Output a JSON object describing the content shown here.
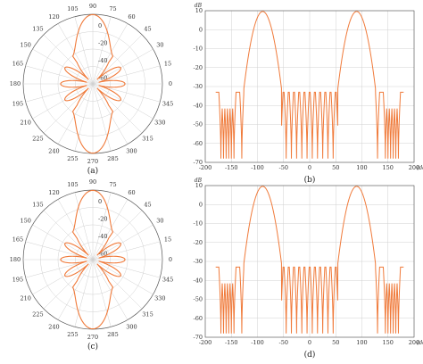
{
  "colors": {
    "trace": "#f07a3a",
    "grid": "#d0d0d0",
    "axis": "#555555",
    "text": "#333333"
  },
  "chart_data": [
    {
      "panel": "(a)",
      "type": "polar",
      "caption": "(a)",
      "angle_ticks": [
        "0",
        "15",
        "30",
        "45",
        "60",
        "75",
        "90",
        "105",
        "120",
        "135",
        "150",
        "165",
        "180",
        "195",
        "210",
        "225",
        "240",
        "255",
        "270",
        "285",
        "300",
        "315",
        "330",
        "345"
      ],
      "radial_ticks": [
        "0",
        "-20",
        "-40",
        "-60"
      ],
      "rlim": [
        -70,
        10
      ],
      "pattern": {
        "peak_db": 9.6,
        "null_dirs_deg": [
          -55,
          -60,
          -65,
          -70,
          -75,
          -80,
          -85,
          -95,
          -100,
          -105,
          -110,
          -115,
          -120,
          -125,
          -130,
          -145,
          -150,
          -155,
          -160,
          -165,
          -170
        ],
        "sidelobe_db": -33
      }
    },
    {
      "panel": "(b)",
      "type": "line",
      "caption": "(b)",
      "ylabel": "dB",
      "xlabel": "(deg)",
      "xlim": [
        -200,
        200
      ],
      "ylim": [
        -70,
        10
      ],
      "x_ticks": [
        "-200",
        "-150",
        "-100",
        "-50",
        "0",
        "50",
        "100",
        "150",
        "200"
      ],
      "y_ticks": [
        "10",
        "0",
        "-10",
        "-20",
        "-30",
        "-40",
        "-50",
        "-60",
        "-70"
      ],
      "series": [
        {
          "main_lobes": [
            {
              "center": -90,
              "peak": 9.6
            },
            {
              "center": 90,
              "peak": 9.6
            }
          ],
          "sidelobe_level": -33,
          "null_positions": [
            -170,
            -165,
            -160,
            -155,
            -150,
            -145,
            -130,
            -55,
            -45,
            -35,
            -25,
            -15,
            -5,
            5,
            15,
            25,
            35,
            45,
            55,
            130,
            145,
            150,
            155,
            160,
            165,
            170
          ],
          "null_depth": -68,
          "x_range": [
            -180,
            180
          ]
        }
      ]
    },
    {
      "panel": "(c)",
      "type": "polar",
      "caption": "(c)",
      "angle_ticks": [
        "0",
        "15",
        "30",
        "45",
        "60",
        "75",
        "90",
        "105",
        "120",
        "135",
        "150",
        "165",
        "180",
        "195",
        "210",
        "225",
        "240",
        "255",
        "270",
        "285",
        "300",
        "315",
        "330",
        "345"
      ],
      "radial_ticks": [
        "0",
        "-20",
        "-40",
        "-60"
      ],
      "rlim": [
        -70,
        10
      ],
      "pattern": {
        "peak_db": 9.6,
        "sidelobe_db": -33
      }
    },
    {
      "panel": "(d)",
      "type": "line",
      "caption": "(d)",
      "ylabel": "dB",
      "xlabel": "(deg)",
      "xlim": [
        -200,
        200
      ],
      "ylim": [
        -70,
        10
      ],
      "x_ticks": [
        "-200",
        "-150",
        "-100",
        "-50",
        "0",
        "50",
        "100",
        "150",
        "200"
      ],
      "y_ticks": [
        "10",
        "0",
        "-10",
        "-20",
        "-30",
        "-40",
        "-50",
        "-60",
        "-70"
      ],
      "series": [
        {
          "main_lobes": [
            {
              "center": -90,
              "peak": 9.6
            },
            {
              "center": 90,
              "peak": 9.6
            }
          ],
          "sidelobe_level": -33,
          "null_positions": [
            -170,
            -165,
            -160,
            -155,
            -150,
            -145,
            -130,
            -55,
            -45,
            -35,
            -25,
            -15,
            -5,
            5,
            15,
            25,
            35,
            45,
            55,
            130,
            145,
            150,
            155,
            160,
            165,
            170
          ],
          "null_depth": -68,
          "x_range": [
            -180,
            180
          ]
        }
      ]
    }
  ]
}
